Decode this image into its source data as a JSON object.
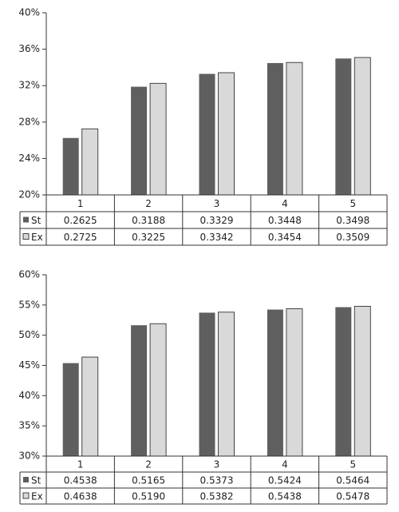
{
  "chart_data": [
    {
      "type": "bar",
      "categories": [
        "1",
        "2",
        "3",
        "4",
        "5"
      ],
      "series": [
        {
          "name": "St",
          "color": "#5f5f5f",
          "values": [
            0.2625,
            0.3188,
            0.3329,
            0.3448,
            0.3498
          ],
          "value_labels": [
            "0.2625",
            "0.3188",
            "0.3329",
            "0.3448",
            "0.3498"
          ]
        },
        {
          "name": "Ex",
          "color": "#d9d9d9",
          "values": [
            0.2725,
            0.3225,
            0.3342,
            0.3454,
            0.3509
          ],
          "value_labels": [
            "0.2725",
            "0.3225",
            "0.3342",
            "0.3454",
            "0.3509"
          ]
        }
      ],
      "ylim": [
        0.2,
        0.4
      ],
      "yticks": [
        {
          "value": 0.2,
          "label": "20%"
        },
        {
          "value": 0.24,
          "label": "24%"
        },
        {
          "value": 0.28,
          "label": "28%"
        },
        {
          "value": 0.32,
          "label": "32%"
        },
        {
          "value": 0.36,
          "label": "36%"
        },
        {
          "value": 0.4,
          "label": "40%"
        }
      ]
    },
    {
      "type": "bar",
      "categories": [
        "1",
        "2",
        "3",
        "4",
        "5"
      ],
      "series": [
        {
          "name": "St",
          "color": "#5f5f5f",
          "values": [
            0.4538,
            0.5165,
            0.5373,
            0.5424,
            0.5464
          ],
          "value_labels": [
            "0.4538",
            "0.5165",
            "0.5373",
            "0.5424",
            "0.5464"
          ]
        },
        {
          "name": "Ex",
          "color": "#d9d9d9",
          "values": [
            0.4638,
            0.519,
            0.5382,
            0.5438,
            0.5478
          ],
          "value_labels": [
            "0.4638",
            "0.5190",
            "0.5382",
            "0.5438",
            "0.5478"
          ]
        }
      ],
      "ylim": [
        0.3,
        0.6
      ],
      "yticks": [
        {
          "value": 0.3,
          "label": "30%"
        },
        {
          "value": 0.35,
          "label": "35%"
        },
        {
          "value": 0.4,
          "label": "40%"
        },
        {
          "value": 0.45,
          "label": "45%"
        },
        {
          "value": 0.5,
          "label": "50%"
        },
        {
          "value": 0.55,
          "label": "55%"
        },
        {
          "value": 0.6,
          "label": "60%"
        }
      ]
    }
  ]
}
